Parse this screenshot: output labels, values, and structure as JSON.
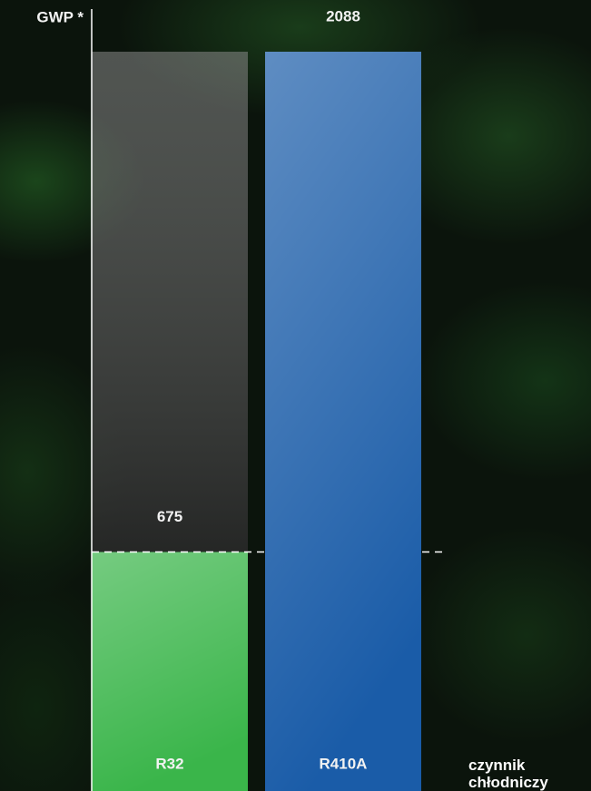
{
  "chart_data": {
    "type": "bar",
    "y_label": "GWP *",
    "x_label": "czynnik chłodniczy",
    "categories": [
      "R32",
      "R410A"
    ],
    "values": [
      675,
      2088
    ],
    "colors": [
      "#3ab54a",
      "#1a5ca8"
    ],
    "ylim": [
      0,
      2088
    ]
  }
}
